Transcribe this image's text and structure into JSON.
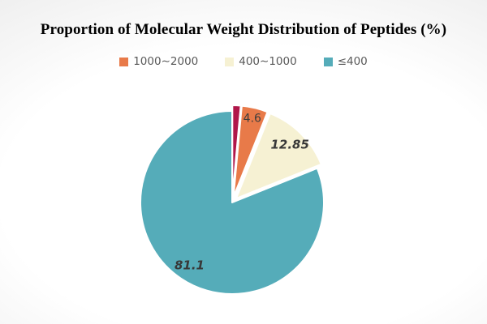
{
  "title": "Proportion of Molecular Weight Distribution of Peptides (%)",
  "legend": [
    {
      "label": "1000∼2000",
      "color": "#E87A49"
    },
    {
      "label": "400∼1000",
      "color": "#F6F1D3"
    },
    {
      "label": "≤400",
      "color": "#55ACB9"
    }
  ],
  "chart_data": {
    "type": "pie",
    "title": "Proportion of Molecular Weight Distribution of Peptides (%)",
    "unit": "%",
    "start_angle": "12-oclock",
    "direction": "clockwise",
    "legend_position": "top-center",
    "background": "white-to-gray vignette",
    "slices": [
      {
        "category": "",
        "value": 1.45,
        "data_label": "",
        "color": "#B0174A",
        "exploded": true
      },
      {
        "category": "1000∼2000",
        "value": 4.6,
        "data_label": "4.6",
        "color": "#E87A49",
        "exploded": true
      },
      {
        "category": "400∼1000",
        "value": 12.85,
        "data_label": "12.85",
        "color": "#F6F1D3",
        "exploded": true
      },
      {
        "category": "≤400",
        "value": 81.1,
        "data_label": "81.1",
        "color": "#55ACB9",
        "exploded": false
      }
    ]
  }
}
